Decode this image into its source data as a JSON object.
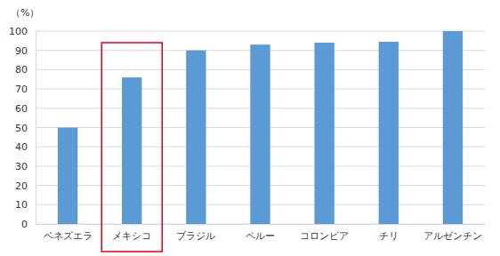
{
  "chart_data": {
    "type": "bar",
    "y_label": "（%）",
    "categories": [
      "ベネズエラ",
      "メキシコ",
      "ブラジル",
      "ペルー",
      "コロンビア",
      "チリ",
      "アルゼンチン"
    ],
    "values": [
      50,
      76,
      90,
      93,
      94,
      94.5,
      100
    ],
    "color": "#5b9bd5",
    "ylim": [
      0,
      100
    ],
    "yticks": [
      0,
      10,
      20,
      30,
      40,
      50,
      60,
      70,
      80,
      90,
      100
    ],
    "grid": true
  }
}
